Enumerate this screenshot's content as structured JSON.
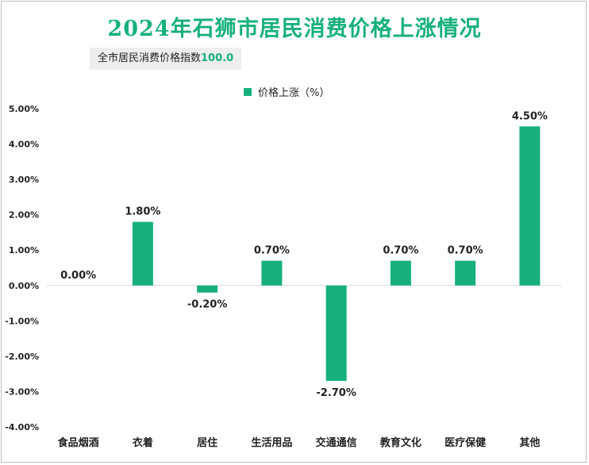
{
  "title": "2024年石狮市居民消费价格上涨情况",
  "subtitle": {
    "label": "全市居民消费价格指数",
    "value": "100.0"
  },
  "colors": {
    "bar": "#17b07d",
    "axis": "#d9d9d9",
    "title": "#17b07d"
  },
  "chart_data": {
    "type": "bar",
    "title": "2024年石狮市居民消费价格上涨情况",
    "legend": [
      "价格上涨（%）"
    ],
    "legend_position": "top-center",
    "categories": [
      "食品烟酒",
      "衣着",
      "居住",
      "生活用品",
      "交通通信",
      "教育文化",
      "医疗保健",
      "其他"
    ],
    "series": [
      {
        "name": "价格上涨（%）",
        "values": [
          0.0,
          1.8,
          -0.2,
          0.7,
          -2.7,
          0.7,
          0.7,
          4.5
        ],
        "labels": [
          "0.00%",
          "1.80%",
          "-0.20%",
          "0.70%",
          "-2.70%",
          "0.70%",
          "0.70%",
          "4.50%"
        ]
      }
    ],
    "ylim": [
      -4,
      5
    ],
    "yticks": [
      5,
      4,
      3,
      2,
      1,
      0,
      -1,
      -2,
      -3,
      -4
    ],
    "ytick_labels": [
      "5.00%",
      "4.00%",
      "3.00%",
      "2.00%",
      "1.00%",
      "0.00%",
      "-1.00%",
      "-2.00%",
      "-3.00%",
      "-4.00%"
    ],
    "grid": false,
    "xlabel": "",
    "ylabel": ""
  }
}
